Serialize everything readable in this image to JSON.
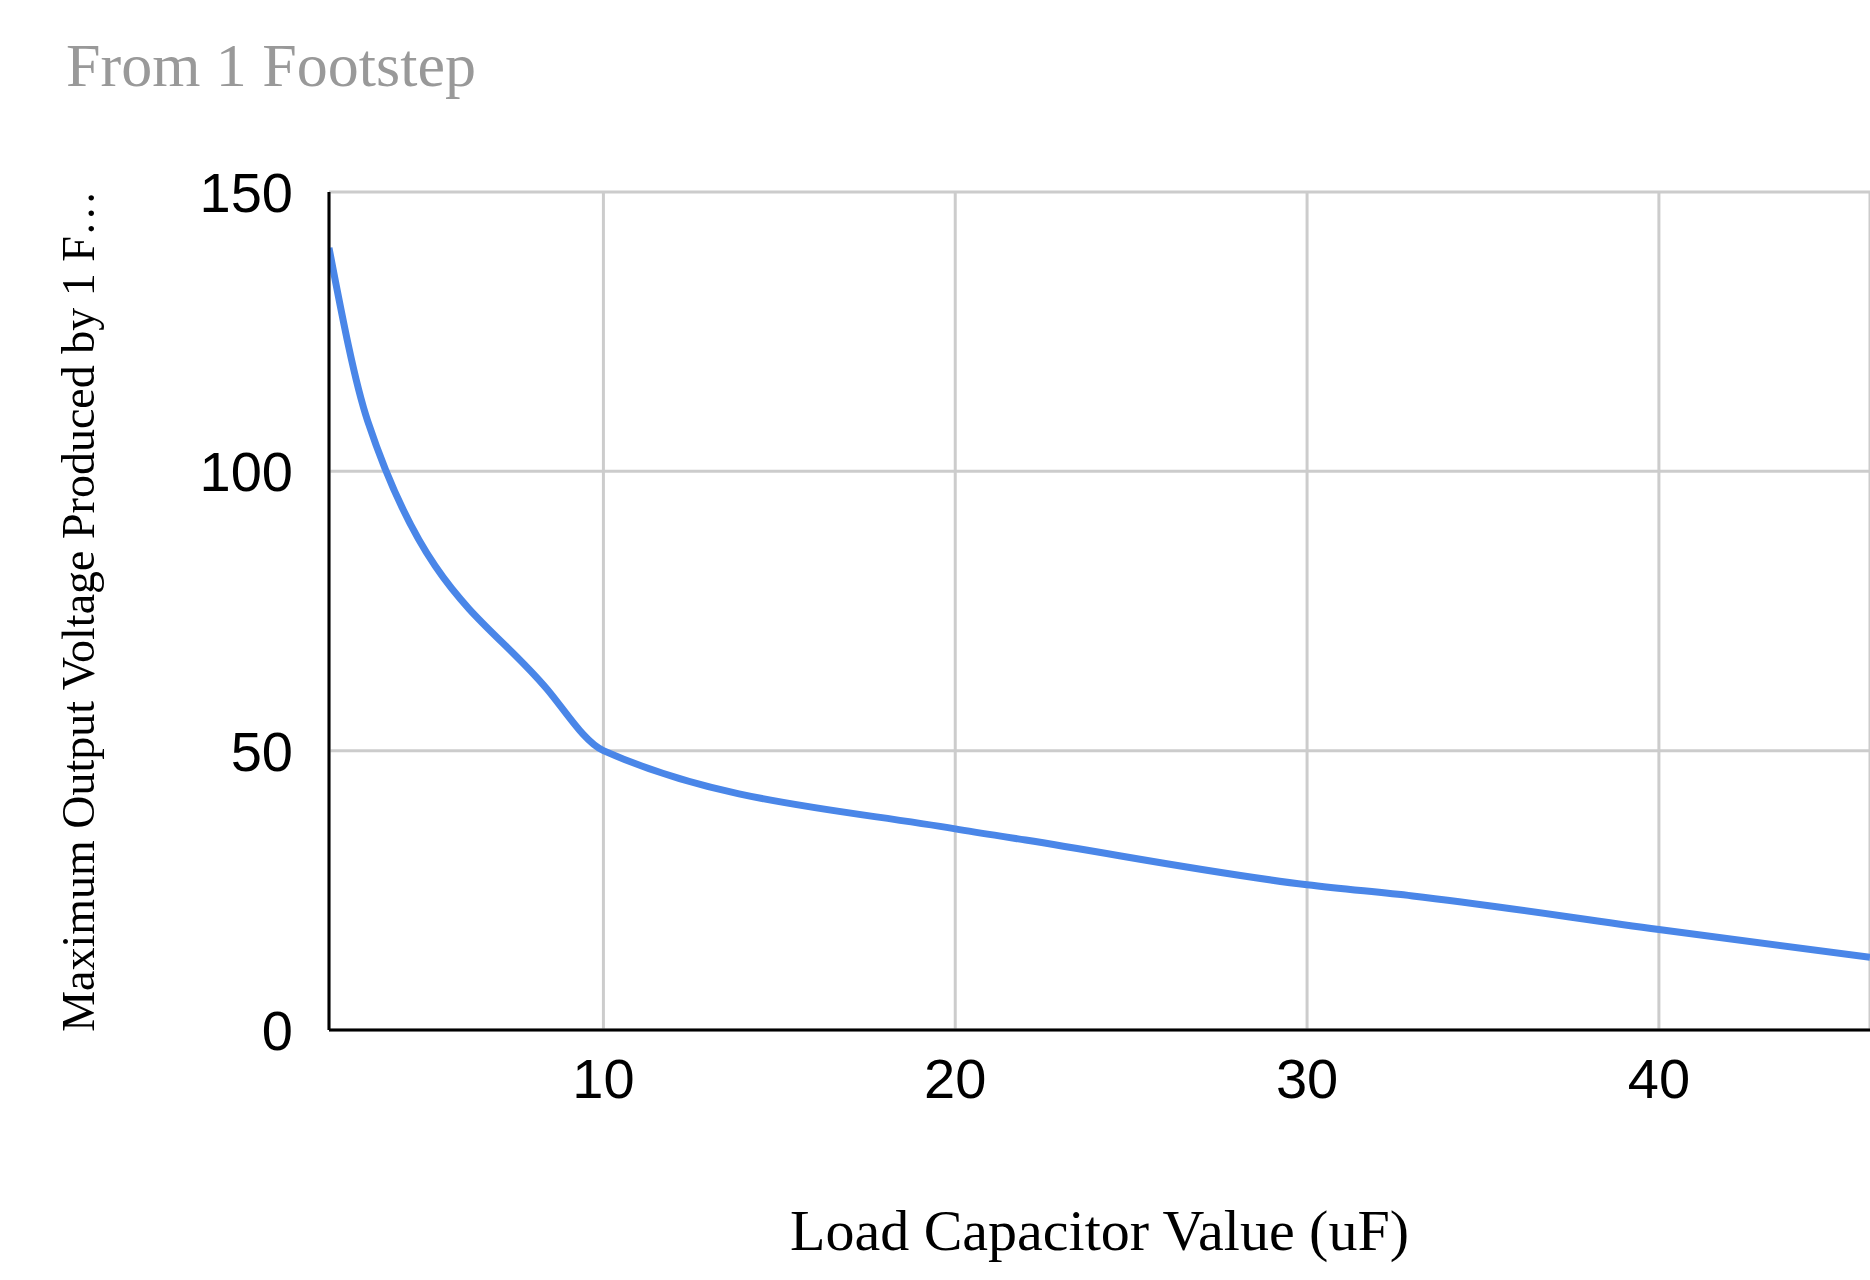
{
  "chart_data": {
    "type": "line",
    "title": "From 1 Footstep",
    "xlabel": "Load Capacitor Value (uF)",
    "ylabel": "Maximum Output Voltage Produced by 1 F…",
    "x": [
      2.2,
      3.3,
      8.4,
      10,
      20,
      22,
      30,
      33,
      40,
      46
    ],
    "series": [
      {
        "color": "#4a86e8",
        "values": [
          140,
          109,
          61,
          50,
          36,
          34,
          26,
          24,
          18,
          13
        ]
      }
    ],
    "xlim": [
      2.2,
      46
    ],
    "ylim": [
      0,
      150
    ],
    "xticks": [
      10,
      20,
      30,
      40
    ],
    "yticks": [
      0,
      50,
      100,
      150
    ],
    "grid": true,
    "marker": "none",
    "line_style": "solid"
  }
}
